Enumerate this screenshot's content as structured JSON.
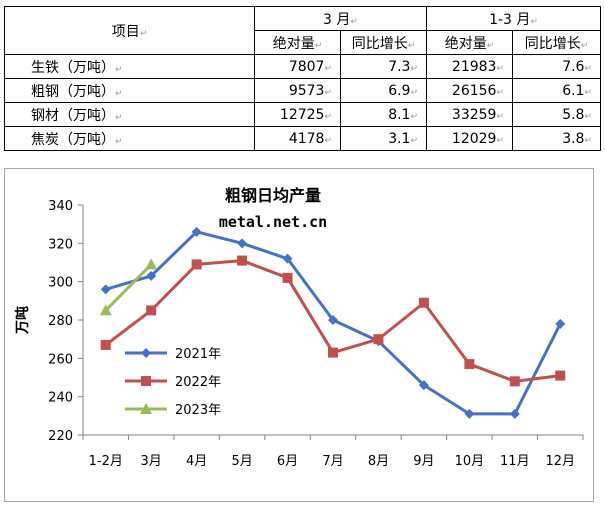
{
  "table": {
    "item_header": "项目",
    "group_headers": [
      "3 月",
      "1-3 月"
    ],
    "sub_headers": [
      "绝对量",
      "同比增长",
      "绝对量",
      "同比增长"
    ],
    "rows": [
      {
        "name": "生铁（万吨）",
        "values": [
          "7807",
          "7.3",
          "21983",
          "7.6"
        ]
      },
      {
        "name": "粗钢（万吨）",
        "values": [
          "9573",
          "6.9",
          "26156",
          "6.1"
        ]
      },
      {
        "name": "钢材（万吨）",
        "values": [
          "12725",
          "8.1",
          "33259",
          "5.8"
        ]
      },
      {
        "name": "焦炭（万吨）",
        "values": [
          "4178",
          "3.1",
          "12029",
          "3.8"
        ]
      }
    ]
  },
  "chart_data": {
    "type": "line",
    "title": "粗钢日均产量",
    "subtitle": "metal.net.cn",
    "xlabel": "",
    "ylabel": "万吨",
    "categories": [
      "1-2月",
      "3月",
      "4月",
      "5月",
      "6月",
      "7月",
      "8月",
      "9月",
      "10月",
      "11月",
      "12月"
    ],
    "ylim": [
      220,
      340
    ],
    "yticks": [
      220,
      240,
      260,
      280,
      300,
      320,
      340
    ],
    "grid": false,
    "legend_position": "left-bottom",
    "series": [
      {
        "name": "2021年",
        "color": "#4472c4",
        "marker": "diamond",
        "values": [
          296,
          303,
          326,
          320,
          312,
          280,
          269,
          246,
          231,
          231,
          278
        ]
      },
      {
        "name": "2022年",
        "color": "#c0504d",
        "marker": "square",
        "values": [
          267,
          285,
          309,
          311,
          302,
          263,
          270,
          289,
          257,
          248,
          251
        ]
      },
      {
        "name": "2023年",
        "color": "#9bbb59",
        "marker": "triangle",
        "values": [
          285,
          309,
          null,
          null,
          null,
          null,
          null,
          null,
          null,
          null,
          null
        ]
      }
    ]
  }
}
